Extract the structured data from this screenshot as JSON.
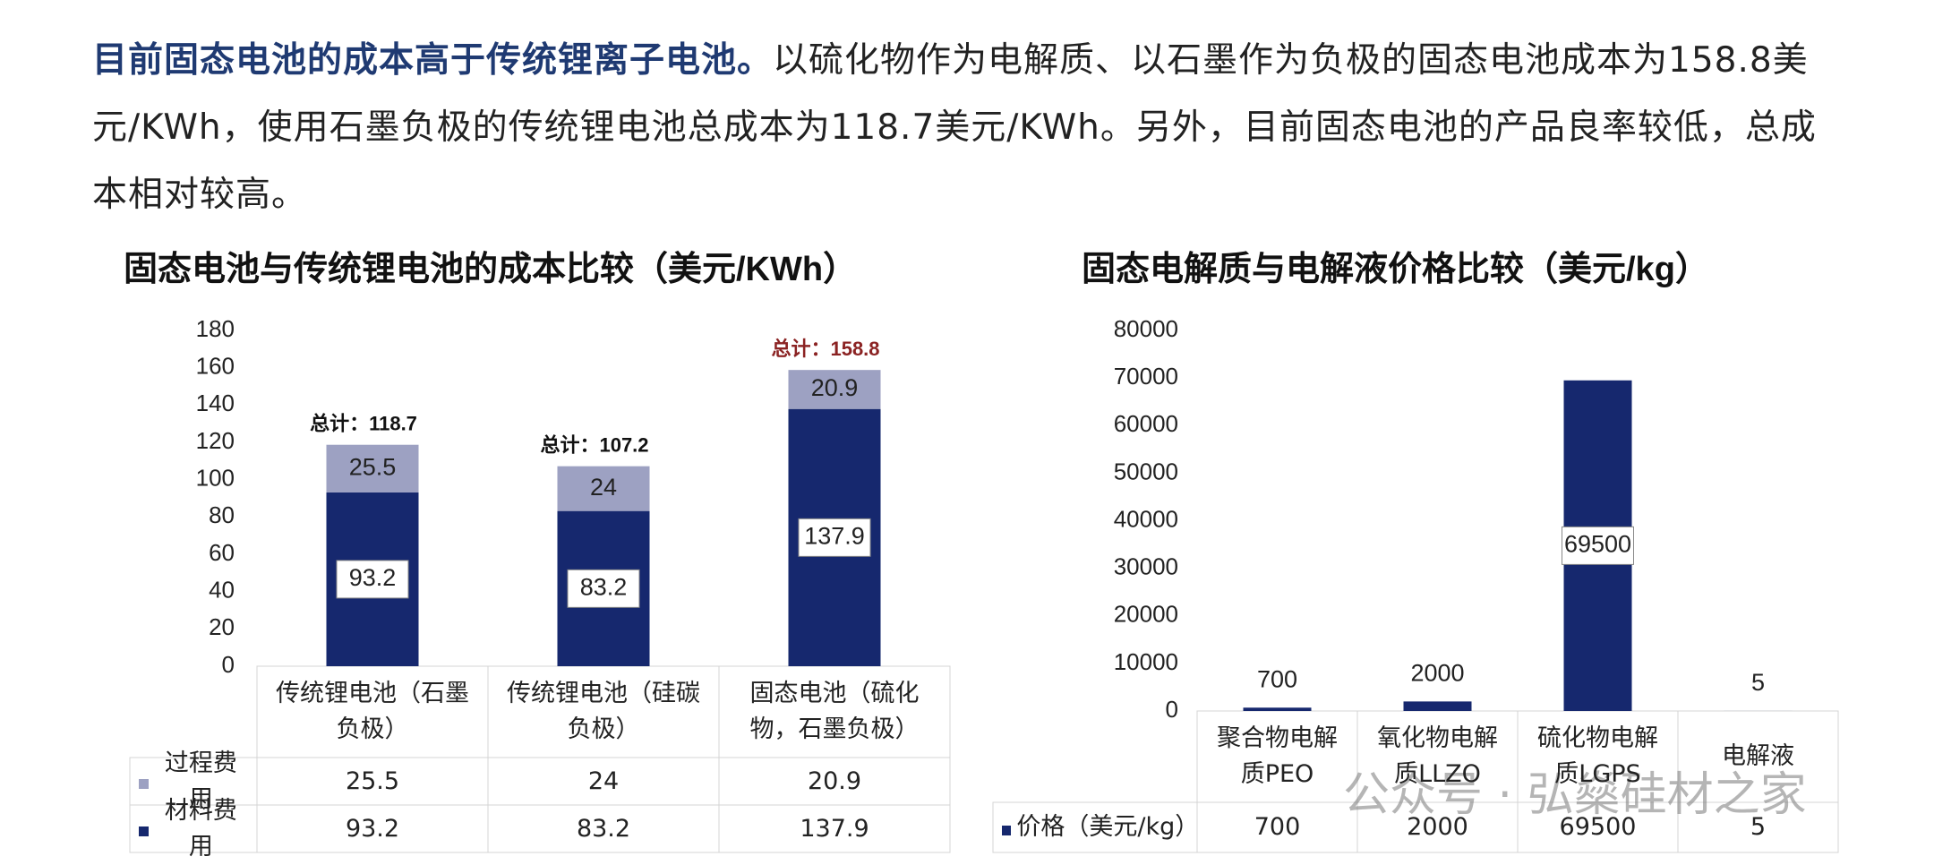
{
  "intro": {
    "highlight": "目前固态电池的成本高于传统锂离子电池。",
    "body": "以硫化物作为电解质、以石墨作为负极的固态电池成本为158.8美元/KWh，使用石墨负极的传统锂电池总成本为118.7美元/KWh。另外，目前固态电池的产品良率较低，总成本相对较高。"
  },
  "chart_data": [
    {
      "type": "bar",
      "stacked": true,
      "title": "固态电池与传统锂电池的成本比较（美元/KWh）",
      "categories": [
        "传统锂电池（石墨负极）",
        "传统锂电池（硅碳负极）",
        "固态电池（硫化物，石墨负极）"
      ],
      "series": [
        {
          "name": "过程费用",
          "color": "#9da1c2",
          "values": [
            25.5,
            24,
            20.9
          ]
        },
        {
          "name": "材料费用",
          "color": "#16286e",
          "values": [
            93.2,
            83.2,
            137.9
          ]
        }
      ],
      "totals": {
        "values": [
          118.7,
          107.2,
          158.8
        ],
        "value_labels": [
          "总计：118.7",
          "总计：107.2",
          "总计：158.8"
        ],
        "colors": [
          "#111111",
          "#111111",
          "#8b2323"
        ]
      },
      "ylim": [
        0,
        180
      ],
      "yticks": [
        0,
        20,
        40,
        60,
        80,
        100,
        120,
        140,
        160,
        180
      ],
      "grid": false
    },
    {
      "type": "bar",
      "stacked": false,
      "title": "固态电解质与电解液价格比较（美元/kg）",
      "categories": [
        "聚合物电解质PEO",
        "氧化物电解质LLZO",
        "硫化物电解质LGPS",
        "电解液"
      ],
      "series": [
        {
          "name": "价格（美元/kg）",
          "color": "#16286e",
          "values": [
            700,
            2000,
            69500,
            5
          ]
        }
      ],
      "ylim": [
        0,
        80000
      ],
      "yticks": [
        0,
        10000,
        20000,
        30000,
        40000,
        50000,
        60000,
        70000,
        80000
      ],
      "grid": false
    }
  ],
  "watermark": "公众号 · 弘燊硅材之家"
}
